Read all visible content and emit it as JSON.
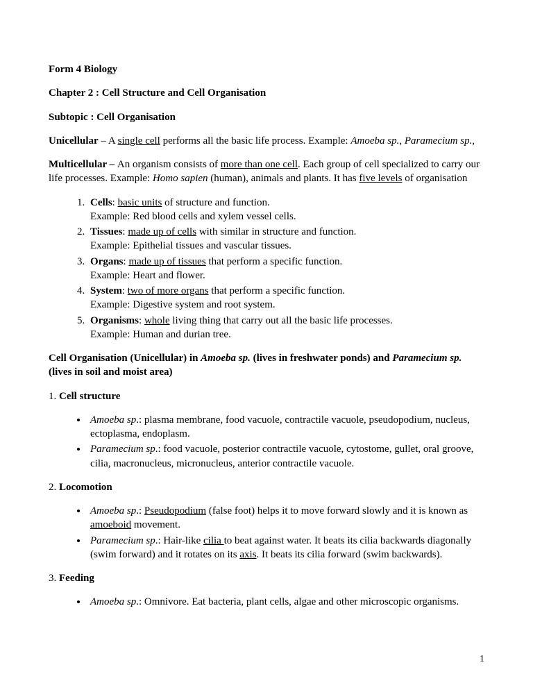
{
  "header": {
    "course": "Form 4 Biology",
    "chapter": "Chapter 2 : Cell Structure and Cell Organisation",
    "subtopic": "Subtopic : Cell Organisation"
  },
  "unicellular": {
    "label": "Unicellular",
    "dash": " – A ",
    "keyword": "single cell",
    "rest": " performs all the basic life process. Example: ",
    "ex1": "Amoeba sp.",
    "comma": ", ",
    "ex2": "Paramecium sp.",
    "trail": ","
  },
  "multicellular": {
    "label": "Multicellular – ",
    "pre": "An organism consists of ",
    "keyword": "more than one cell",
    "mid": ". Each group of cell specialized to carry our life processes. Example: ",
    "ex": "Homo sapien",
    "post": " (human), animals and plants. It has ",
    "levels": "five levels",
    "end": " of organisation"
  },
  "orglist": [
    {
      "term": "Cells",
      "key": "basic units",
      "rest": " of structure and function.",
      "example": "Example: Red blood cells and xylem vessel cells."
    },
    {
      "term": "Tissues",
      "key": "made up of cells",
      "rest": " with similar in structure and function.",
      "example": "Example: Epithelial tissues and vascular tissues."
    },
    {
      "term": "Organs",
      "key": "made up of tissues",
      "rest": " that perform a specific function.",
      "example": "Example: Heart and flower."
    },
    {
      "term": "System",
      "key": "two of more organs",
      "rest": " that perform a specific function.",
      "example": "Example: Digestive system and root system."
    },
    {
      "term": "Organisms",
      "key": "whole",
      "rest": " living thing that carry out all the basic life processes.",
      "example": "Example: Human and durian tree."
    }
  ],
  "unicell_heading": {
    "a": "Cell Organisation (Unicellular) in ",
    "b": "Amoeba sp.",
    "c": " (lives in freshwater ponds) and ",
    "d": "Paramecium sp.",
    "e": " (lives in soil and moist area)"
  },
  "s1": {
    "num": "1. ",
    "title": "Cell structure",
    "amoeba_label": "Amoeba sp",
    "amoeba_text": ".: plasma membrane, food vacuole, contractile vacuole, pseudopodium, nucleus, ectoplasma, endoplasm.",
    "para_label": "Paramecium sp",
    "para_text": ".: food vacuole, posterior contractile vacuole, cytostome, gullet, oral groove, cilia, macronucleus, micronucleus, anterior contractile vacuole."
  },
  "s2": {
    "num": "2. ",
    "title": "Locomotion",
    "amoeba_label": "Amoeba sp",
    "amoeba_a": ".: ",
    "amoeba_key": "Pseudopodium",
    "amoeba_b": " (false foot) helps it to move forward slowly and it is known as ",
    "amoeba_key2": "amoeboid",
    "amoeba_c": " movement.",
    "para_label": "Paramecium sp",
    "para_a": ".: Hair-like ",
    "para_key": "cilia ",
    "para_b": "to beat against water. It beats its cilia backwards diagonally (swim forward) and it rotates on its ",
    "para_key2": "axis",
    "para_c": ". It beats its cilia forward (swim backwards)."
  },
  "s3": {
    "num": "3. ",
    "title": "Feeding",
    "amoeba_label": "Amoeba sp",
    "amoeba_text": ".: Omnivore. Eat bacteria, plant cells, algae and other microscopic organisms."
  },
  "page_number": "1"
}
